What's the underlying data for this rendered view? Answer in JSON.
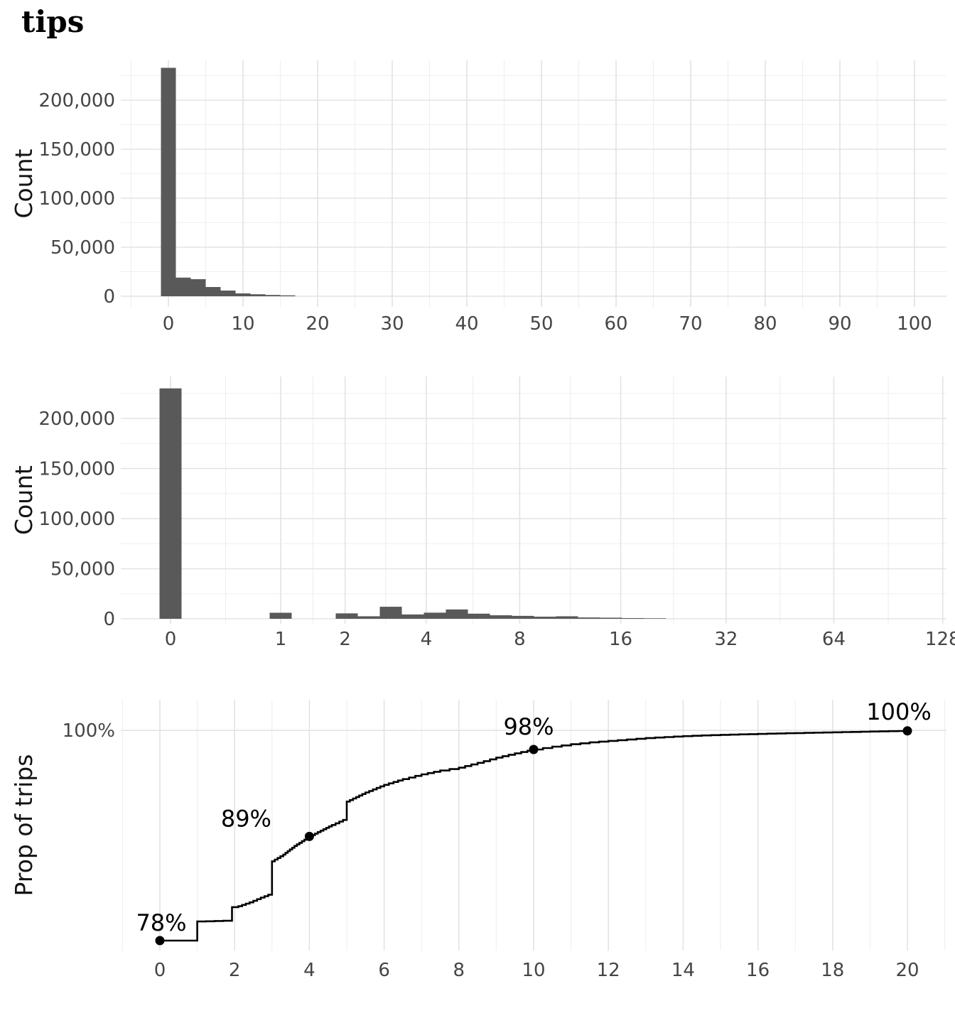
{
  "title": "tips",
  "colors": {
    "background": "#ffffff",
    "bar": "#595959",
    "grid_major": "#e3e3e3",
    "grid_minor": "#efefef",
    "axis_text": "#454545",
    "axis_title": "#141414",
    "line": "#000000",
    "point": "#000000",
    "annotation": "#000000"
  },
  "chart_data": [
    {
      "type": "bar",
      "name": "histogram-linear",
      "title": "",
      "xlabel": "",
      "ylabel": "Count",
      "x_scale": "linear",
      "x_domain": [
        -5.9,
        104
      ],
      "y_domain": [
        -11000,
        241000
      ],
      "grid": true,
      "x_ticks": [
        0,
        10,
        20,
        30,
        40,
        50,
        60,
        70,
        80,
        90,
        100
      ],
      "x_minor_ticks": [
        -5,
        5,
        15,
        25,
        35,
        45,
        55,
        65,
        75,
        85,
        95
      ],
      "y_ticks": [
        {
          "v": 0,
          "label": "0"
        },
        {
          "v": 50000,
          "label": "50,000"
        },
        {
          "v": 100000,
          "label": "100,000"
        },
        {
          "v": 150000,
          "label": "150,000"
        },
        {
          "v": 200000,
          "label": "200,000"
        }
      ],
      "y_minor_ticks": [
        25000,
        75000,
        125000,
        175000,
        225000
      ],
      "binwidth": 2,
      "bars": [
        {
          "x_center": 0,
          "count": 233000
        },
        {
          "x_center": 2,
          "count": 19000
        },
        {
          "x_center": 4,
          "count": 17400
        },
        {
          "x_center": 6,
          "count": 9400
        },
        {
          "x_center": 8,
          "count": 5800
        },
        {
          "x_center": 10,
          "count": 2900
        },
        {
          "x_center": 12,
          "count": 2000
        },
        {
          "x_center": 14,
          "count": 1300
        },
        {
          "x_center": 16,
          "count": 900
        }
      ]
    },
    {
      "type": "bar",
      "name": "histogram-log2p1",
      "title": "",
      "xlabel": "",
      "ylabel": "Count",
      "x_scale": "log2(x+1)",
      "t_domain": [
        -0.42,
        7.03
      ],
      "y_domain": [
        -5000,
        242000
      ],
      "grid": true,
      "x_ticks": [
        0,
        1,
        2,
        4,
        8,
        16,
        32,
        64,
        128
      ],
      "y_ticks": [
        {
          "v": 0,
          "label": "0"
        },
        {
          "v": 50000,
          "label": "50,000"
        },
        {
          "v": 100000,
          "label": "100,000"
        },
        {
          "v": 150000,
          "label": "150,000"
        },
        {
          "v": 200000,
          "label": "200,000"
        }
      ],
      "y_minor_ticks": [
        25000,
        75000,
        125000,
        175000,
        225000
      ],
      "bin_t_width": 0.2,
      "bars": [
        {
          "t": 0.0,
          "x_center": 0.0,
          "count": 230000
        },
        {
          "t": 1.0,
          "x_center": 1.0,
          "count": 6000
        },
        {
          "t": 1.6,
          "x_center": 2.03,
          "count": 5400
        },
        {
          "t": 1.8,
          "x_center": 2.48,
          "count": 2500
        },
        {
          "t": 2.0,
          "x_center": 3.0,
          "count": 12000
        },
        {
          "t": 2.2,
          "x_center": 3.59,
          "count": 4300
        },
        {
          "t": 2.4,
          "x_center": 4.28,
          "count": 6100
        },
        {
          "t": 2.6,
          "x_center": 5.06,
          "count": 9300
        },
        {
          "t": 2.8,
          "x_center": 5.96,
          "count": 5100
        },
        {
          "t": 3.0,
          "x_center": 7.0,
          "count": 3500
        },
        {
          "t": 3.2,
          "x_center": 8.19,
          "count": 2900
        },
        {
          "t": 3.4,
          "x_center": 9.56,
          "count": 2100
        },
        {
          "t": 3.6,
          "x_center": 11.13,
          "count": 2500
        },
        {
          "t": 3.8,
          "x_center": 12.93,
          "count": 1300
        },
        {
          "t": 4.0,
          "x_center": 15.0,
          "count": 1100
        },
        {
          "t": 4.2,
          "x_center": 17.38,
          "count": 700
        },
        {
          "t": 4.4,
          "x_center": 20.11,
          "count": 400
        }
      ]
    },
    {
      "type": "line",
      "name": "ecdf-prop-of-trips",
      "title": "",
      "xlabel": "",
      "ylabel": "Prop of trips",
      "x_scale": "linear",
      "x_domain": [
        -1.05,
        21.0
      ],
      "y_domain_pct": [
        76.9,
        103.2
      ],
      "grid": true,
      "x_ticks": [
        0,
        2,
        4,
        6,
        8,
        10,
        12,
        14,
        16,
        18,
        20
      ],
      "x_minor_ticks": [
        -1,
        1,
        3,
        5,
        7,
        9,
        11,
        13,
        15,
        17,
        19,
        21
      ],
      "y_ticks": [
        {
          "v": 100,
          "label": "100%"
        }
      ],
      "points": [
        {
          "x": 0,
          "p": 78.0,
          "label": "78%"
        },
        {
          "x": 4,
          "p": 88.9,
          "label": "89%"
        },
        {
          "x": 10,
          "p": 98.0,
          "label": "98%"
        },
        {
          "x": 20,
          "p": 99.95,
          "label": "100%"
        }
      ],
      "curve": [
        [
          0,
          78
        ],
        [
          1,
          78
        ],
        [
          1,
          80.0
        ],
        [
          1.93,
          80.1
        ],
        [
          1.93,
          81.5
        ],
        [
          2.1,
          81.6
        ],
        [
          2.4,
          82.0
        ],
        [
          2.7,
          82.5
        ],
        [
          3,
          82.95
        ],
        [
          3,
          86.3
        ],
        [
          3.3,
          87.0
        ],
        [
          3.6,
          87.9
        ],
        [
          4,
          88.9
        ],
        [
          4.3,
          89.5
        ],
        [
          4.6,
          90.1
        ],
        [
          5,
          90.8
        ],
        [
          5,
          92.55
        ],
        [
          5.5,
          93.5
        ],
        [
          6,
          94.3
        ],
        [
          6.5,
          94.9
        ],
        [
          7,
          95.4
        ],
        [
          7.5,
          95.8
        ],
        [
          8,
          96.1
        ],
        [
          8.5,
          96.6
        ],
        [
          9,
          97.15
        ],
        [
          9.5,
          97.6
        ],
        [
          10,
          98.0
        ],
        [
          10.5,
          98.3
        ],
        [
          11,
          98.55
        ],
        [
          11.5,
          98.75
        ],
        [
          12,
          98.9
        ],
        [
          12.5,
          99.05
        ],
        [
          13,
          99.2
        ],
        [
          13.5,
          99.3
        ],
        [
          14,
          99.4
        ],
        [
          14.5,
          99.47
        ],
        [
          15,
          99.53
        ],
        [
          15.5,
          99.58
        ],
        [
          16,
          99.63
        ],
        [
          16.5,
          99.68
        ],
        [
          17,
          99.72
        ],
        [
          17.5,
          99.76
        ],
        [
          18,
          99.8
        ],
        [
          18.5,
          99.84
        ],
        [
          19,
          99.88
        ],
        [
          19.5,
          99.92
        ],
        [
          20,
          99.95
        ]
      ]
    }
  ]
}
